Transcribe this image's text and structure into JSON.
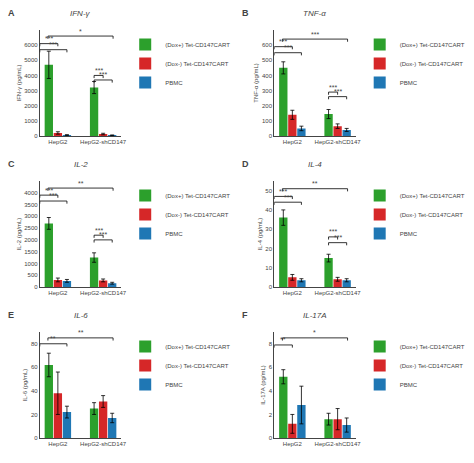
{
  "chart_data": [
    {
      "type": "bar",
      "title": "IFN-γ",
      "ylabel": "IFN-γ (pg/mL)",
      "x": [
        1,
        2
      ],
      "xlim": [
        0.6,
        2.4
      ],
      "xticks": [
        {
          "value": 1,
          "label": "HepG2"
        },
        {
          "value": 2,
          "label": "HepG2-shCD147"
        }
      ],
      "ylim": [
        0,
        7000
      ],
      "yticks": [
        0,
        1000,
        2000,
        3000,
        4000,
        5000,
        6000
      ],
      "grid": false,
      "legend": "right",
      "series": [
        {
          "name": "(Dox+) Tet-CD147CART",
          "color": "#2ca02c",
          "values": [
            4700,
            3200
          ],
          "errors": [
            900,
            400
          ]
        },
        {
          "name": "(Dox-) Tet-CD147CART",
          "color": "#d62728",
          "values": [
            200,
            130
          ],
          "errors": [
            80,
            50
          ]
        },
        {
          "name": "PBMC",
          "color": "#1f77b4",
          "values": [
            60,
            50
          ],
          "errors": [
            30,
            20
          ]
        }
      ],
      "annotations": [
        {
          "text": "A"
        },
        {
          "text": "*",
          "x1": 0.78,
          "x2": 2.22,
          "y": 6600
        },
        {
          "text": "***",
          "x1": 0.6,
          "x2": 1.0,
          "y": 6100
        },
        {
          "text": "***",
          "x1": 0.6,
          "x2": 1.2,
          "y": 5700
        },
        {
          "text": "***",
          "x1": 1.8,
          "x2": 2.0,
          "y": 4000
        },
        {
          "text": "***",
          "x1": 1.8,
          "x2": 2.2,
          "y": 3700
        }
      ]
    },
    {
      "type": "bar",
      "title": "TNF-α",
      "ylabel": "TNF-α (pg/mL)",
      "x": [
        1,
        2
      ],
      "xlim": [
        0.6,
        2.4
      ],
      "xticks": [
        {
          "value": 1,
          "label": "HepG2"
        },
        {
          "value": 2,
          "label": "HepG2-shCD147"
        }
      ],
      "ylim": [
        0,
        700
      ],
      "yticks": [
        0,
        100,
        200,
        300,
        400,
        500,
        600
      ],
      "grid": false,
      "legend": "right",
      "series": [
        {
          "name": "(Dox+) Tet-CD147CART",
          "color": "#2ca02c",
          "values": [
            450,
            145
          ],
          "errors": [
            40,
            30
          ]
        },
        {
          "name": "(Dox-) Tet-CD147CART",
          "color": "#d62728",
          "values": [
            140,
            65
          ],
          "errors": [
            30,
            15
          ]
        },
        {
          "name": "PBMC",
          "color": "#1f77b4",
          "values": [
            50,
            40
          ],
          "errors": [
            15,
            10
          ]
        }
      ],
      "annotations": [
        {
          "text": "B"
        },
        {
          "text": "***",
          "x1": 0.78,
          "x2": 2.22,
          "y": 640
        },
        {
          "text": "***",
          "x1": 0.6,
          "x2": 1.0,
          "y": 590
        },
        {
          "text": "***",
          "x1": 0.6,
          "x2": 1.2,
          "y": 550
        },
        {
          "text": "***",
          "x1": 1.8,
          "x2": 2.0,
          "y": 290
        },
        {
          "text": "***",
          "x1": 1.8,
          "x2": 2.2,
          "y": 260
        }
      ]
    },
    {
      "type": "bar",
      "title": "IL-2",
      "ylabel": "IL-2 (pg/mL)",
      "x": [
        1,
        2
      ],
      "xlim": [
        0.6,
        2.4
      ],
      "xticks": [
        {
          "value": 1,
          "label": "HepG2"
        },
        {
          "value": 2,
          "label": "HepG2-shCD147"
        }
      ],
      "ylim": [
        0,
        4500
      ],
      "yticks": [
        0,
        500,
        1000,
        1500,
        2000,
        2500,
        3000,
        3500,
        4000
      ],
      "grid": false,
      "legend": "right",
      "series": [
        {
          "name": "(Dox+) Tet-CD147CART",
          "color": "#2ca02c",
          "values": [
            2700,
            1250
          ],
          "errors": [
            250,
            200
          ]
        },
        {
          "name": "(Dox-) Tet-CD147CART",
          "color": "#d62728",
          "values": [
            300,
            280
          ],
          "errors": [
            80,
            60
          ]
        },
        {
          "name": "PBMC",
          "color": "#1f77b4",
          "values": [
            260,
            160
          ],
          "errors": [
            60,
            40
          ]
        }
      ],
      "annotations": [
        {
          "text": "C"
        },
        {
          "text": "**",
          "x1": 0.78,
          "x2": 2.22,
          "y": 4200
        },
        {
          "text": "***",
          "x1": 0.6,
          "x2": 1.0,
          "y": 3900
        },
        {
          "text": "***",
          "x1": 0.6,
          "x2": 1.2,
          "y": 3650
        },
        {
          "text": "***",
          "x1": 1.8,
          "x2": 2.0,
          "y": 2200
        },
        {
          "text": "***",
          "x1": 1.8,
          "x2": 2.2,
          "y": 2000
        }
      ]
    },
    {
      "type": "bar",
      "title": "IL-4",
      "ylabel": "IL-4 (pg/mL)",
      "x": [
        1,
        2
      ],
      "xlim": [
        0.6,
        2.4
      ],
      "xticks": [
        {
          "value": 1,
          "label": "HepG2"
        },
        {
          "value": 2,
          "label": "HepG2-shCD147"
        }
      ],
      "ylim": [
        0,
        55
      ],
      "yticks": [
        0,
        10,
        20,
        30,
        40,
        50
      ],
      "grid": false,
      "legend": "right",
      "series": [
        {
          "name": "(Dox+) Tet-CD147CART",
          "color": "#2ca02c",
          "values": [
            36,
            15
          ],
          "errors": [
            4,
            2
          ]
        },
        {
          "name": "(Dox-) Tet-CD147CART",
          "color": "#d62728",
          "values": [
            5,
            4
          ],
          "errors": [
            1.5,
            1
          ]
        },
        {
          "name": "PBMC",
          "color": "#1f77b4",
          "values": [
            3.5,
            3.5
          ],
          "errors": [
            0.8,
            0.8
          ]
        }
      ],
      "annotations": [
        {
          "text": "D"
        },
        {
          "text": "**",
          "x1": 0.78,
          "x2": 2.22,
          "y": 51
        },
        {
          "text": "***",
          "x1": 0.6,
          "x2": 1.0,
          "y": 47
        },
        {
          "text": "***",
          "x1": 0.6,
          "x2": 1.2,
          "y": 44
        },
        {
          "text": "***",
          "x1": 1.8,
          "x2": 2.0,
          "y": 26
        },
        {
          "text": "***",
          "x1": 1.8,
          "x2": 2.2,
          "y": 23
        }
      ]
    },
    {
      "type": "bar",
      "title": "IL-6",
      "ylabel": "IL-6 (pg/mL)",
      "x": [
        1,
        2
      ],
      "xlim": [
        0.6,
        2.4
      ],
      "xticks": [
        {
          "value": 1,
          "label": "HepG2"
        },
        {
          "value": 2,
          "label": "HepG2-shCD147"
        }
      ],
      "ylim": [
        0,
        90
      ],
      "yticks": [
        0,
        20,
        40,
        60,
        80
      ],
      "grid": false,
      "legend": "right",
      "series": [
        {
          "name": "(Dox+) Tet-CD147CART",
          "color": "#2ca02c",
          "values": [
            62,
            25
          ],
          "errors": [
            10,
            5
          ]
        },
        {
          "name": "(Dox-) Tet-CD147CART",
          "color": "#d62728",
          "values": [
            38,
            31
          ],
          "errors": [
            18,
            5
          ]
        },
        {
          "name": "PBMC",
          "color": "#1f77b4",
          "values": [
            22,
            17
          ],
          "errors": [
            5,
            4
          ]
        }
      ],
      "annotations": [
        {
          "text": "E"
        },
        {
          "text": "**",
          "x1": 0.78,
          "x2": 2.22,
          "y": 85
        },
        {
          "text": "**",
          "x1": 0.6,
          "x2": 1.2,
          "y": 80
        }
      ]
    },
    {
      "type": "bar",
      "title": "IL-17A",
      "ylabel": "IL-17A (pg/mL)",
      "x": [
        1,
        2
      ],
      "xlim": [
        0.6,
        2.4
      ],
      "xticks": [
        {
          "value": 1,
          "label": "HepG2"
        },
        {
          "value": 2,
          "label": "HepG2-shCD147"
        }
      ],
      "ylim": [
        0,
        9
      ],
      "yticks": [
        0,
        2,
        4,
        6,
        8
      ],
      "grid": false,
      "legend": "right",
      "series": [
        {
          "name": "(Dox+) Tet-CD147CART",
          "color": "#2ca02c",
          "values": [
            5.2,
            1.6
          ],
          "errors": [
            0.6,
            0.5
          ]
        },
        {
          "name": "(Dox-) Tet-CD147CART",
          "color": "#d62728",
          "values": [
            1.2,
            1.6
          ],
          "errors": [
            0.8,
            0.9
          ]
        },
        {
          "name": "PBMC",
          "color": "#1f77b4",
          "values": [
            2.8,
            1.1
          ],
          "errors": [
            1.6,
            0.6
          ]
        }
      ],
      "annotations": [
        {
          "text": "F"
        },
        {
          "text": "*",
          "x1": 0.78,
          "x2": 2.22,
          "y": 8.5
        },
        {
          "text": "**",
          "x1": 0.6,
          "x2": 1.0,
          "y": 7.9
        }
      ]
    }
  ]
}
